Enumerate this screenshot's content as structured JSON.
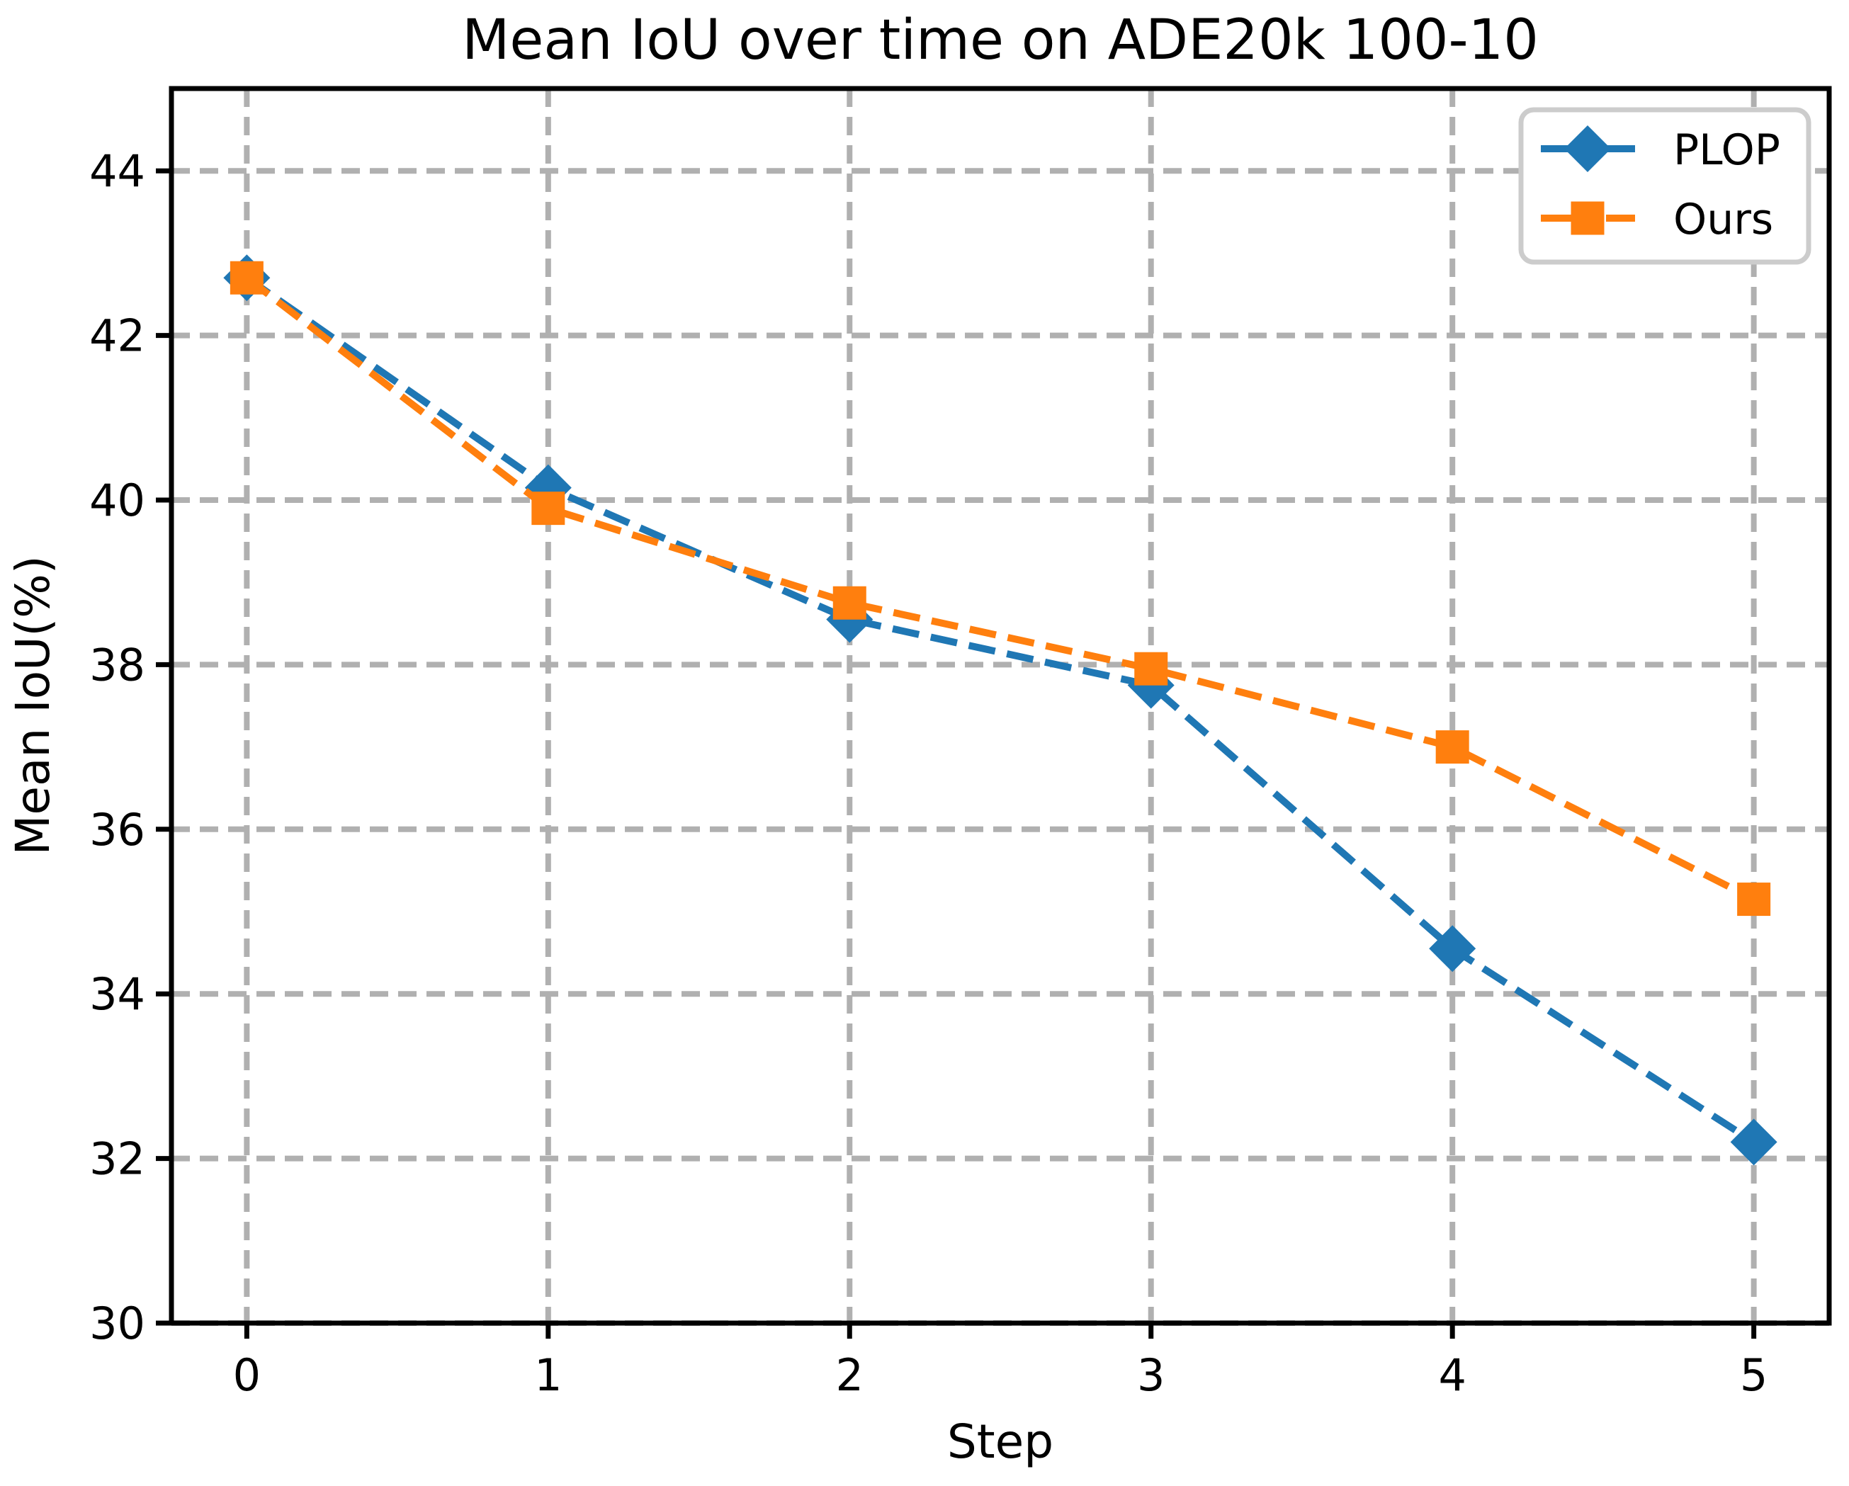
{
  "chart_data": {
    "type": "line",
    "title": "Mean IoU over time on ADE20k 100-10",
    "xlabel": "Step",
    "ylabel": "Mean IoU(%)",
    "x": [
      0,
      1,
      2,
      3,
      4,
      5
    ],
    "series": [
      {
        "name": "PLOP",
        "color": "#1f77b4",
        "marker": "diamond",
        "linestyle": "dashed",
        "values": [
          42.7,
          40.15,
          38.55,
          37.75,
          34.55,
          32.2
        ]
      },
      {
        "name": "Ours",
        "color": "#ff7f0e",
        "marker": "square",
        "linestyle": "dashed",
        "values": [
          42.7,
          39.9,
          38.75,
          37.95,
          37.0,
          35.15
        ]
      }
    ],
    "xlim": [
      -0.25,
      5.25
    ],
    "ylim": [
      30,
      45
    ],
    "xticks": [
      0,
      1,
      2,
      3,
      4,
      5
    ],
    "yticks": [
      30,
      32,
      34,
      36,
      38,
      40,
      42,
      44
    ],
    "grid": true,
    "grid_color": "#b0b0b0",
    "axis_color": "#000000",
    "background": "#ffffff",
    "legend_position": "upper right",
    "legend_border_color": "#cccccc"
  }
}
